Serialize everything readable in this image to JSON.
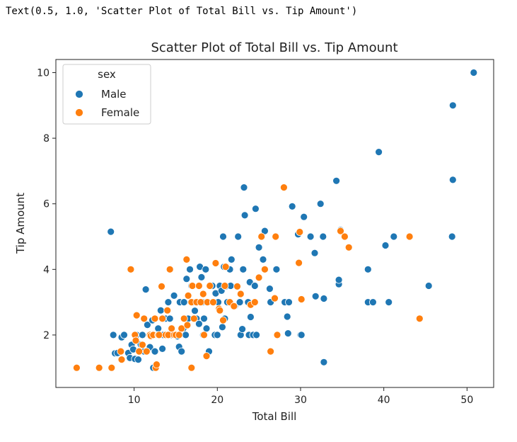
{
  "output_text": "Text(0.5, 1.0, 'Scatter Plot of Total Bill vs. Tip Amount')",
  "chart_data": {
    "type": "scatter",
    "title": "Scatter Plot of Total Bill vs. Tip Amount",
    "xlabel": "Total Bill",
    "ylabel": "Tip Amount",
    "xlim": [
      0.6,
      53.2
    ],
    "ylim": [
      0.4,
      10.4
    ],
    "xticks": [
      10,
      20,
      30,
      40,
      50
    ],
    "yticks": [
      2,
      4,
      6,
      8,
      10
    ],
    "grid": false,
    "legend": {
      "title": "sex",
      "placement": "top-left"
    },
    "series": [
      {
        "name": "Male",
        "color": "#1f77b4",
        "points": [
          [
            7.2,
            5.15
          ],
          [
            7.5,
            2.0
          ],
          [
            7.7,
            1.44
          ],
          [
            8.0,
            1.45
          ],
          [
            8.5,
            1.93
          ],
          [
            8.8,
            2.0
          ],
          [
            9.3,
            1.45
          ],
          [
            9.5,
            1.3
          ],
          [
            9.7,
            1.7
          ],
          [
            9.9,
            1.56
          ],
          [
            10.1,
            1.27
          ],
          [
            10.3,
            2.0
          ],
          [
            10.5,
            1.25
          ],
          [
            10.8,
            1.71
          ],
          [
            11.0,
            2.0
          ],
          [
            11.2,
            1.5
          ],
          [
            11.4,
            3.39
          ],
          [
            11.6,
            2.31
          ],
          [
            11.9,
            1.63
          ],
          [
            12.0,
            2.0
          ],
          [
            12.2,
            2.45
          ],
          [
            12.3,
            1.0
          ],
          [
            12.5,
            1.5
          ],
          [
            12.7,
            2.0
          ],
          [
            12.9,
            2.2
          ],
          [
            13.0,
            2.0
          ],
          [
            13.2,
            2.75
          ],
          [
            13.4,
            1.58
          ],
          [
            13.5,
            2.0
          ],
          [
            13.8,
            2.5
          ],
          [
            14.1,
            3.0
          ],
          [
            14.3,
            2.5
          ],
          [
            14.5,
            2.0
          ],
          [
            14.8,
            3.2
          ],
          [
            15.0,
            2.0
          ],
          [
            15.2,
            1.96
          ],
          [
            15.4,
            1.64
          ],
          [
            15.5,
            3.0
          ],
          [
            15.7,
            1.5
          ],
          [
            15.9,
            2.2
          ],
          [
            16.0,
            3.0
          ],
          [
            16.2,
            2.0
          ],
          [
            16.3,
            3.71
          ],
          [
            16.5,
            2.5
          ],
          [
            16.7,
            4.0
          ],
          [
            16.9,
            3.5
          ],
          [
            17.1,
            3.0
          ],
          [
            17.3,
            2.74
          ],
          [
            17.5,
            2.5
          ],
          [
            17.6,
            3.0
          ],
          [
            17.8,
            2.34
          ],
          [
            17.9,
            4.08
          ],
          [
            18.1,
            3.76
          ],
          [
            18.2,
            3.0
          ],
          [
            18.3,
            2.0
          ],
          [
            18.4,
            2.5
          ],
          [
            18.6,
            4.0
          ],
          [
            18.7,
            2.2
          ],
          [
            18.8,
            3.0
          ],
          [
            19.0,
            1.5
          ],
          [
            19.4,
            3.5
          ],
          [
            19.5,
            3.0
          ],
          [
            19.7,
            2.0
          ],
          [
            19.8,
            3.27
          ],
          [
            20.0,
            2.0
          ],
          [
            20.1,
            3.0
          ],
          [
            20.3,
            3.5
          ],
          [
            20.5,
            3.35
          ],
          [
            20.6,
            2.24
          ],
          [
            20.7,
            5.0
          ],
          [
            20.8,
            4.08
          ],
          [
            20.9,
            2.5
          ],
          [
            21.0,
            3.48
          ],
          [
            21.2,
            3.0
          ],
          [
            21.5,
            4.0
          ],
          [
            21.6,
            3.5
          ],
          [
            21.7,
            4.3
          ],
          [
            22.1,
            2.88
          ],
          [
            22.5,
            5.0
          ],
          [
            22.7,
            3.0
          ],
          [
            22.8,
            2.0
          ],
          [
            23.0,
            2.18
          ],
          [
            23.1,
            4.0
          ],
          [
            23.2,
            6.5
          ],
          [
            23.3,
            5.65
          ],
          [
            23.7,
            3.0
          ],
          [
            23.8,
            2.0
          ],
          [
            23.9,
            3.61
          ],
          [
            24.0,
            2.55
          ],
          [
            24.3,
            2.0
          ],
          [
            24.5,
            3.5
          ],
          [
            24.6,
            5.85
          ],
          [
            24.7,
            2.0
          ],
          [
            25.0,
            4.67
          ],
          [
            25.3,
            5.0
          ],
          [
            25.5,
            4.3
          ],
          [
            25.7,
            5.17
          ],
          [
            26.3,
            3.41
          ],
          [
            26.4,
            3.0
          ],
          [
            27.1,
            4.0
          ],
          [
            27.2,
            2.0
          ],
          [
            28.1,
            3.0
          ],
          [
            28.4,
            2.56
          ],
          [
            28.5,
            2.05
          ],
          [
            28.6,
            3.0
          ],
          [
            29.0,
            5.92
          ],
          [
            29.7,
            5.07
          ],
          [
            30.0,
            2.0
          ],
          [
            30.1,
            2.0
          ],
          [
            30.4,
            5.6
          ],
          [
            31.2,
            5.0
          ],
          [
            31.7,
            4.5
          ],
          [
            31.8,
            3.18
          ],
          [
            32.4,
            6.0
          ],
          [
            32.7,
            5.0
          ],
          [
            32.8,
            3.11
          ],
          [
            32.8,
            1.17
          ],
          [
            34.3,
            6.7
          ],
          [
            34.6,
            3.55
          ],
          [
            34.6,
            3.68
          ],
          [
            34.8,
            5.2
          ],
          [
            38.1,
            4.0
          ],
          [
            38.1,
            3.0
          ],
          [
            38.7,
            3.0
          ],
          [
            39.4,
            7.58
          ],
          [
            40.2,
            4.73
          ],
          [
            40.6,
            3.0
          ],
          [
            41.2,
            5.0
          ],
          [
            45.4,
            3.5
          ],
          [
            48.2,
            5.0
          ],
          [
            48.3,
            6.73
          ],
          [
            48.3,
            9.0
          ],
          [
            50.8,
            10.0
          ]
        ]
      },
      {
        "name": "Female",
        "color": "#ff7f0e",
        "points": [
          [
            3.1,
            1.0
          ],
          [
            5.8,
            1.0
          ],
          [
            7.3,
            1.0
          ],
          [
            8.4,
            1.5
          ],
          [
            8.5,
            1.25
          ],
          [
            9.6,
            4.0
          ],
          [
            10.1,
            2.0
          ],
          [
            10.2,
            1.83
          ],
          [
            10.3,
            2.6
          ],
          [
            10.6,
            1.5
          ],
          [
            11.0,
            1.7
          ],
          [
            11.2,
            2.5
          ],
          [
            11.5,
            1.5
          ],
          [
            11.9,
            2.0
          ],
          [
            12.0,
            1.97
          ],
          [
            12.3,
            2.0
          ],
          [
            12.5,
            2.5
          ],
          [
            12.6,
            1.0
          ],
          [
            12.7,
            1.1
          ],
          [
            12.9,
            2.0
          ],
          [
            13.0,
            2.0
          ],
          [
            13.3,
            3.48
          ],
          [
            13.4,
            2.5
          ],
          [
            13.8,
            2.0
          ],
          [
            14.0,
            2.75
          ],
          [
            14.1,
            2.0
          ],
          [
            14.3,
            4.0
          ],
          [
            14.5,
            2.2
          ],
          [
            14.8,
            2.0
          ],
          [
            15.0,
            2.0
          ],
          [
            15.4,
            2.0
          ],
          [
            15.7,
            2.2
          ],
          [
            16.0,
            2.5
          ],
          [
            16.3,
            4.3
          ],
          [
            16.4,
            2.3
          ],
          [
            16.5,
            3.2
          ],
          [
            16.9,
            1.0
          ],
          [
            16.9,
            3.0
          ],
          [
            17.0,
            3.5
          ],
          [
            17.2,
            2.5
          ],
          [
            17.5,
            3.0
          ],
          [
            17.8,
            3.5
          ],
          [
            18.0,
            3.0
          ],
          [
            18.3,
            3.25
          ],
          [
            18.4,
            2.0
          ],
          [
            18.7,
            1.36
          ],
          [
            18.8,
            3.0
          ],
          [
            19.1,
            3.5
          ],
          [
            19.5,
            3.0
          ],
          [
            19.8,
            4.19
          ],
          [
            20.2,
            2.8
          ],
          [
            20.3,
            2.75
          ],
          [
            20.7,
            2.45
          ],
          [
            20.9,
            3.5
          ],
          [
            21.0,
            4.08
          ],
          [
            21.5,
            3.0
          ],
          [
            22.0,
            2.88
          ],
          [
            22.4,
            3.48
          ],
          [
            22.8,
            3.25
          ],
          [
            24.0,
            2.92
          ],
          [
            24.5,
            3.0
          ],
          [
            25.0,
            3.75
          ],
          [
            25.3,
            5.0
          ],
          [
            25.7,
            4.0
          ],
          [
            26.4,
            1.5
          ],
          [
            26.9,
            3.12
          ],
          [
            27.0,
            5.0
          ],
          [
            27.2,
            2.0
          ],
          [
            28.0,
            6.5
          ],
          [
            29.8,
            4.2
          ],
          [
            29.9,
            5.14
          ],
          [
            30.1,
            3.09
          ],
          [
            34.8,
            5.17
          ],
          [
            35.3,
            5.0
          ],
          [
            35.8,
            4.67
          ],
          [
            43.1,
            5.0
          ],
          [
            44.3,
            2.5
          ]
        ]
      }
    ]
  }
}
